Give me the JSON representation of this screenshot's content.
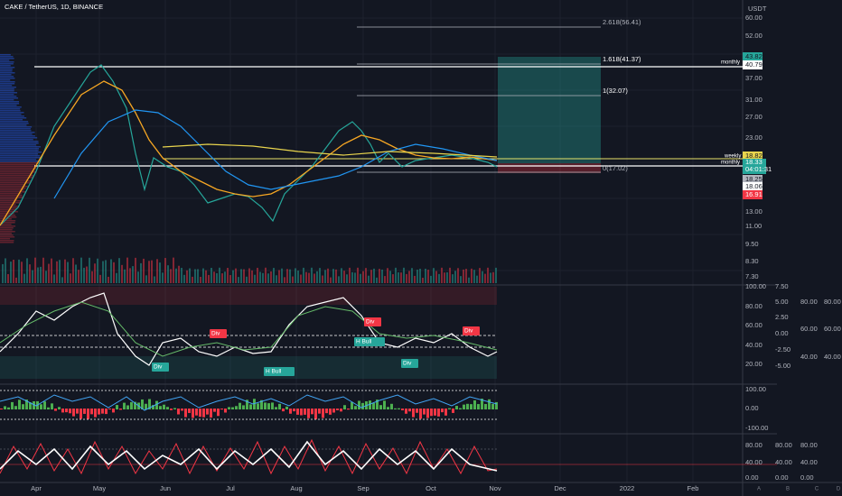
{
  "header": {
    "title": "CAKE / TetherUS, 1D, BINANCE",
    "currency": "USDT"
  },
  "price_axis": [
    "60.00",
    "52.00",
    "43.82",
    "40.79",
    "37.00",
    "31.00",
    "27.00",
    "23.00",
    "18.82",
    "18.33",
    "04:01:31",
    "18.25",
    "18.06",
    "16.91",
    "13.00",
    "11.00",
    "9.50",
    "8.30",
    "7.30"
  ],
  "fib_levels": [
    "2.618(56.41)",
    "1.618(41.37)",
    "1(32.07)",
    "0(17.02)"
  ],
  "line_labels": [
    "monthly",
    "weekly",
    "monthly"
  ],
  "signals": [
    "Div",
    "Div",
    "H Bull",
    "Div",
    "H Bull",
    "Div",
    "Div"
  ],
  "pane2_axis": [
    "100.00",
    "80.00",
    "60.00",
    "40.00",
    "20.00"
  ],
  "pane2_axis_b": [
    "7.50",
    "5.00",
    "2.50",
    "0.00",
    "-2.50",
    "-5.00"
  ],
  "pane2_axis_c": [
    "80.00",
    "60.00",
    "40.00"
  ],
  "pane2_axis_d": [
    "80.00",
    "60.00",
    "40.00"
  ],
  "pane3_axis": [
    "100.00",
    "0.00",
    "-100.00"
  ],
  "pane4_axis": [
    "80.00",
    "40.00",
    "0.00"
  ],
  "pane4_axis_b": [
    "80.00",
    "40.00",
    "0.00"
  ],
  "pane4_axis_c": [
    "80.00",
    "40.00",
    "0.00"
  ],
  "time_axis": [
    "Apr",
    "May",
    "Jun",
    "Jul",
    "Aug",
    "Sep",
    "Oct",
    "Nov",
    "Dec",
    "2022",
    "Feb"
  ],
  "scale_letters": [
    "A",
    "B",
    "C",
    "D"
  ]
}
